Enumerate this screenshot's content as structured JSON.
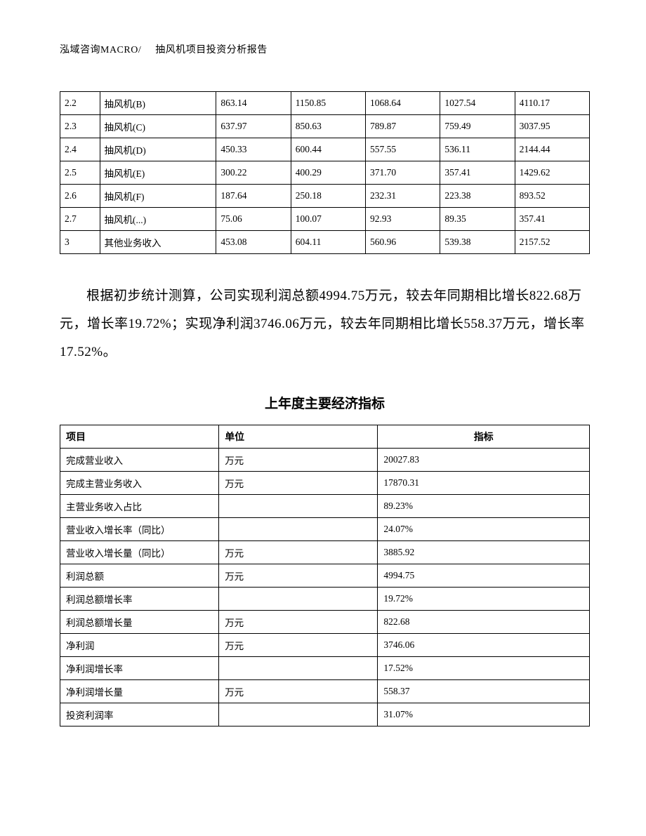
{
  "header": {
    "company": "泓域咨询MACRO/",
    "title": "抽风机项目投资分析报告"
  },
  "table1": {
    "col_widths": [
      "7.5%",
      "22%",
      "14.1%",
      "14.1%",
      "14.1%",
      "14.1%",
      "14.1%"
    ],
    "rows": [
      [
        "2.2",
        "抽风机(B)",
        "863.14",
        "1150.85",
        "1068.64",
        "1027.54",
        "4110.17"
      ],
      [
        "2.3",
        "抽风机(C)",
        "637.97",
        "850.63",
        "789.87",
        "759.49",
        "3037.95"
      ],
      [
        "2.4",
        "抽风机(D)",
        "450.33",
        "600.44",
        "557.55",
        "536.11",
        "2144.44"
      ],
      [
        "2.5",
        "抽风机(E)",
        "300.22",
        "400.29",
        "371.70",
        "357.41",
        "1429.62"
      ],
      [
        "2.6",
        "抽风机(F)",
        "187.64",
        "250.18",
        "232.31",
        "223.38",
        "893.52"
      ],
      [
        "2.7",
        "抽风机(...)",
        "75.06",
        "100.07",
        "92.93",
        "89.35",
        "357.41"
      ],
      [
        "3",
        "其他业务收入",
        "453.08",
        "604.11",
        "560.96",
        "539.38",
        "2157.52"
      ]
    ]
  },
  "paragraph": "根据初步统计测算，公司实现利润总额4994.75万元，较去年同期相比增长822.68万元，增长率19.72%；实现净利润3746.06万元，较去年同期相比增长558.37万元，增长率17.52%。",
  "table2": {
    "title": "上年度主要经济指标",
    "headers": [
      "项目",
      "单位",
      "指标"
    ],
    "col_widths": [
      "30%",
      "30%",
      "40%"
    ],
    "rows": [
      [
        "完成营业收入",
        "万元",
        "20027.83"
      ],
      [
        "完成主营业务收入",
        "万元",
        "17870.31"
      ],
      [
        "主营业务收入占比",
        "",
        "89.23%"
      ],
      [
        "营业收入增长率（同比）",
        "",
        "24.07%"
      ],
      [
        "营业收入增长量（同比）",
        "万元",
        "3885.92"
      ],
      [
        "利润总额",
        "万元",
        "4994.75"
      ],
      [
        "利润总额增长率",
        "",
        "19.72%"
      ],
      [
        "利润总额增长量",
        "万元",
        "822.68"
      ],
      [
        "净利润",
        "万元",
        "3746.06"
      ],
      [
        "净利润增长率",
        "",
        "17.52%"
      ],
      [
        "净利润增长量",
        "万元",
        "558.37"
      ],
      [
        "投资利润率",
        "",
        "31.07%"
      ]
    ]
  }
}
